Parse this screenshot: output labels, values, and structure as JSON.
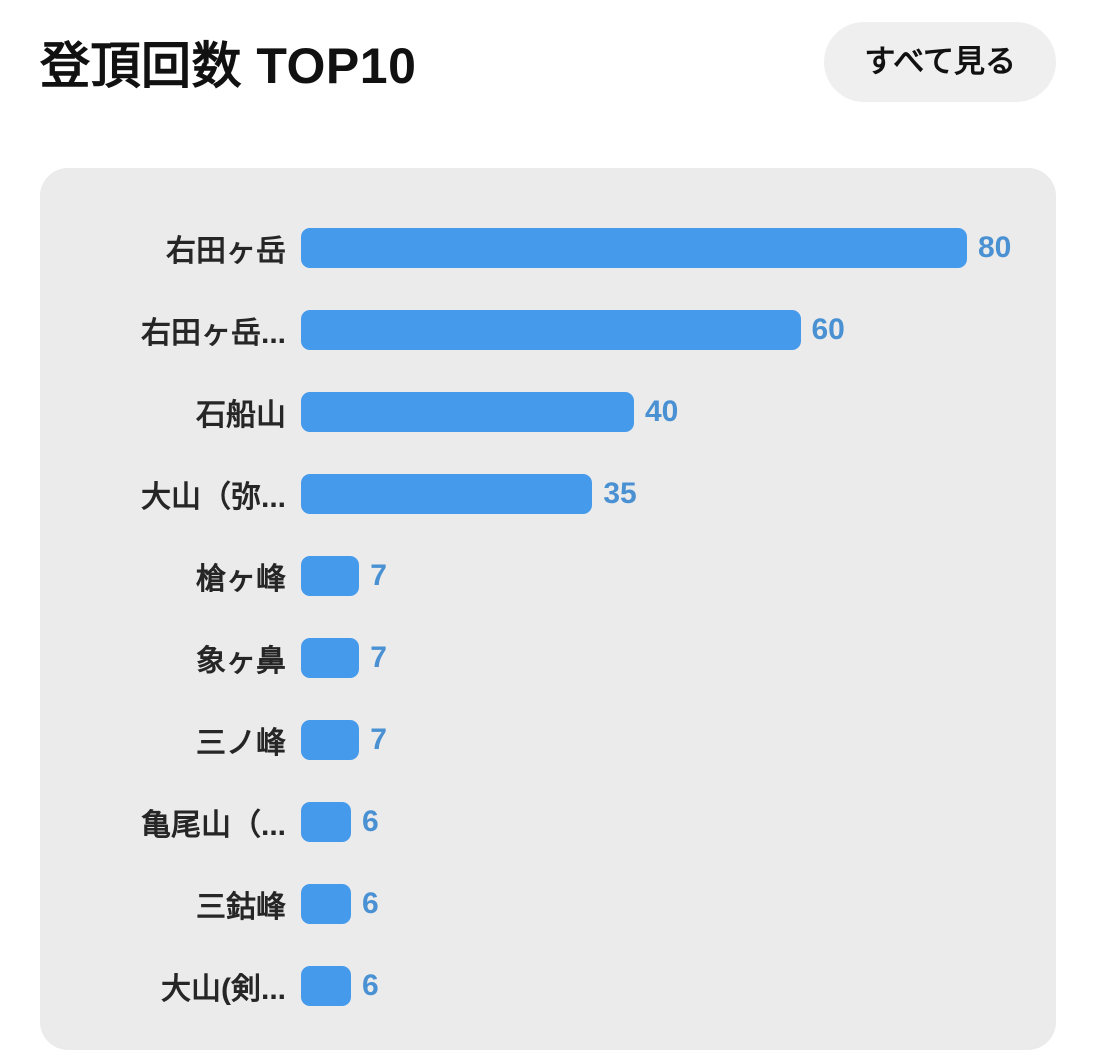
{
  "header": {
    "title": "登頂回数 TOP10",
    "see_all_label": "すべて見る"
  },
  "chart_data": {
    "type": "bar",
    "orientation": "horizontal",
    "title": "登頂回数 TOP10",
    "categories": [
      "右田ヶ岳",
      "右田ヶ岳...",
      "石船山",
      "大山（弥...",
      "槍ヶ峰",
      "象ヶ鼻",
      "三ノ峰",
      "亀尾山（...",
      "三鈷峰",
      "大山(剣..."
    ],
    "values": [
      80,
      60,
      40,
      35,
      7,
      7,
      7,
      6,
      6,
      6
    ],
    "xlim": [
      0,
      80
    ],
    "grid": false,
    "value_labels": "end-of-bar"
  },
  "colors": {
    "bar_fill": "#459aec",
    "value_label": "#4a91d3",
    "category_label": "#262626",
    "card_background": "#ebebeb",
    "button_background": "#efefef",
    "page_background": "#ffffff",
    "title_text": "#111111"
  }
}
